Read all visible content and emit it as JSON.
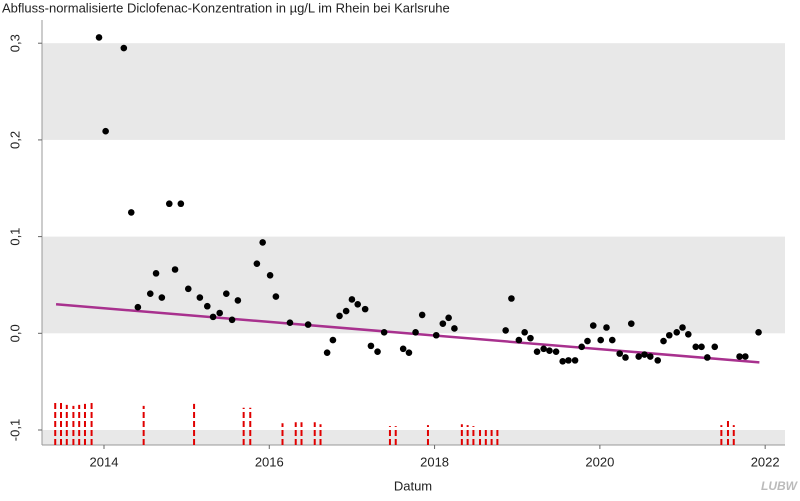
{
  "chart_data": {
    "type": "scatter",
    "title": "Abfluss-normalisierte Diclofenac-Konzentration in µg/L im Rhein bei Karlsruhe",
    "xlabel": "Datum",
    "logo": "LUBW",
    "xlim": [
      2013.25,
      2022.24
    ],
    "xticks": [
      2014,
      2016,
      2018,
      2020,
      2022
    ],
    "ylim": [
      -0.1155,
      0.324
    ],
    "yticks": [
      {
        "value": -0.1,
        "label": "-0,1"
      },
      {
        "value": 0,
        "label": "0,0"
      },
      {
        "value": 0.1,
        "label": "0,1"
      },
      {
        "value": 0.2,
        "label": "0,2"
      },
      {
        "value": 0.3,
        "label": "0,3"
      }
    ],
    "banded_background": true,
    "band_color": "#e8e8e8",
    "series": [
      {
        "mark": "point",
        "color": "#000000",
        "x": [
          2013.94,
          2014.02,
          2014.24,
          2014.33,
          2014.41,
          2014.56,
          2014.63,
          2014.7,
          2014.79,
          2014.86,
          2014.93,
          2015.02,
          2015.16,
          2015.25,
          2015.32,
          2015.4,
          2015.48,
          2015.55,
          2015.62,
          2015.85,
          2015.92,
          2016.01,
          2016.08,
          2016.25,
          2016.47,
          2016.7,
          2016.77,
          2016.85,
          2016.93,
          2017.0,
          2017.07,
          2017.16,
          2017.23,
          2017.31,
          2017.39,
          2017.62,
          2017.69,
          2017.77,
          2017.85,
          2018.02,
          2018.1,
          2018.17,
          2018.24,
          2018.86,
          2018.93,
          2019.02,
          2019.09,
          2019.16,
          2019.24,
          2019.32,
          2019.39,
          2019.47,
          2019.55,
          2019.62,
          2019.7,
          2019.78,
          2019.85,
          2019.92,
          2020.01,
          2020.08,
          2020.15,
          2020.24,
          2020.31,
          2020.38,
          2020.47,
          2020.54,
          2020.61,
          2020.7,
          2020.77,
          2020.84,
          2020.93,
          2021.0,
          2021.07,
          2021.16,
          2021.23,
          2021.3,
          2021.39,
          2021.69,
          2021.76,
          2021.92
        ],
        "values": [
          0.306,
          0.209,
          0.295,
          0.125,
          0.027,
          0.041,
          0.062,
          0.037,
          0.134,
          0.066,
          0.134,
          0.046,
          0.037,
          0.028,
          0.017,
          0.021,
          0.041,
          0.014,
          0.034,
          0.072,
          0.094,
          0.06,
          0.038,
          0.011,
          0.009,
          -0.02,
          -0.007,
          0.018,
          0.023,
          0.035,
          0.03,
          0.025,
          -0.013,
          -0.019,
          0.001,
          -0.016,
          -0.02,
          0.001,
          0.019,
          -0.002,
          0.01,
          0.016,
          0.005,
          0.003,
          0.036,
          -0.007,
          0.001,
          -0.005,
          -0.019,
          -0.016,
          -0.018,
          -0.019,
          -0.029,
          -0.028,
          -0.028,
          -0.014,
          -0.008,
          0.008,
          -0.007,
          0.006,
          -0.007,
          -0.021,
          -0.025,
          0.01,
          -0.024,
          -0.022,
          -0.024,
          -0.028,
          -0.008,
          -0.002,
          0.001,
          0.006,
          -0.001,
          -0.014,
          -0.014,
          -0.025,
          -0.014,
          -0.024,
          -0.024,
          0.001
        ]
      },
      {
        "mark": "line",
        "color": "#a8318e",
        "x": [
          2013.42,
          2021.93
        ],
        "values": [
          0.03,
          -0.03
        ]
      },
      {
        "mark": "dashed-rule",
        "color": "#e00000",
        "x": [
          2013.41,
          2013.48,
          2013.55,
          2013.63,
          2013.7,
          2013.77,
          2013.85,
          2014.48,
          2015.09,
          2015.69,
          2015.77,
          2016.16,
          2016.32,
          2016.39,
          2016.55,
          2016.62,
          2017.46,
          2017.53,
          2017.92,
          2018.33,
          2018.4,
          2018.47,
          2018.55,
          2018.62,
          2018.69,
          2018.76,
          2021.47,
          2021.55,
          2021.62
        ],
        "values": [
          -0.072,
          -0.072,
          -0.074,
          -0.075,
          -0.074,
          -0.073,
          -0.07,
          -0.075,
          -0.073,
          -0.077,
          -0.077,
          -0.093,
          -0.092,
          -0.092,
          -0.092,
          -0.094,
          -0.096,
          -0.096,
          -0.095,
          -0.094,
          -0.095,
          -0.096,
          -0.097,
          -0.098,
          -0.098,
          -0.099,
          -0.095,
          -0.088,
          -0.095
        ]
      }
    ]
  }
}
